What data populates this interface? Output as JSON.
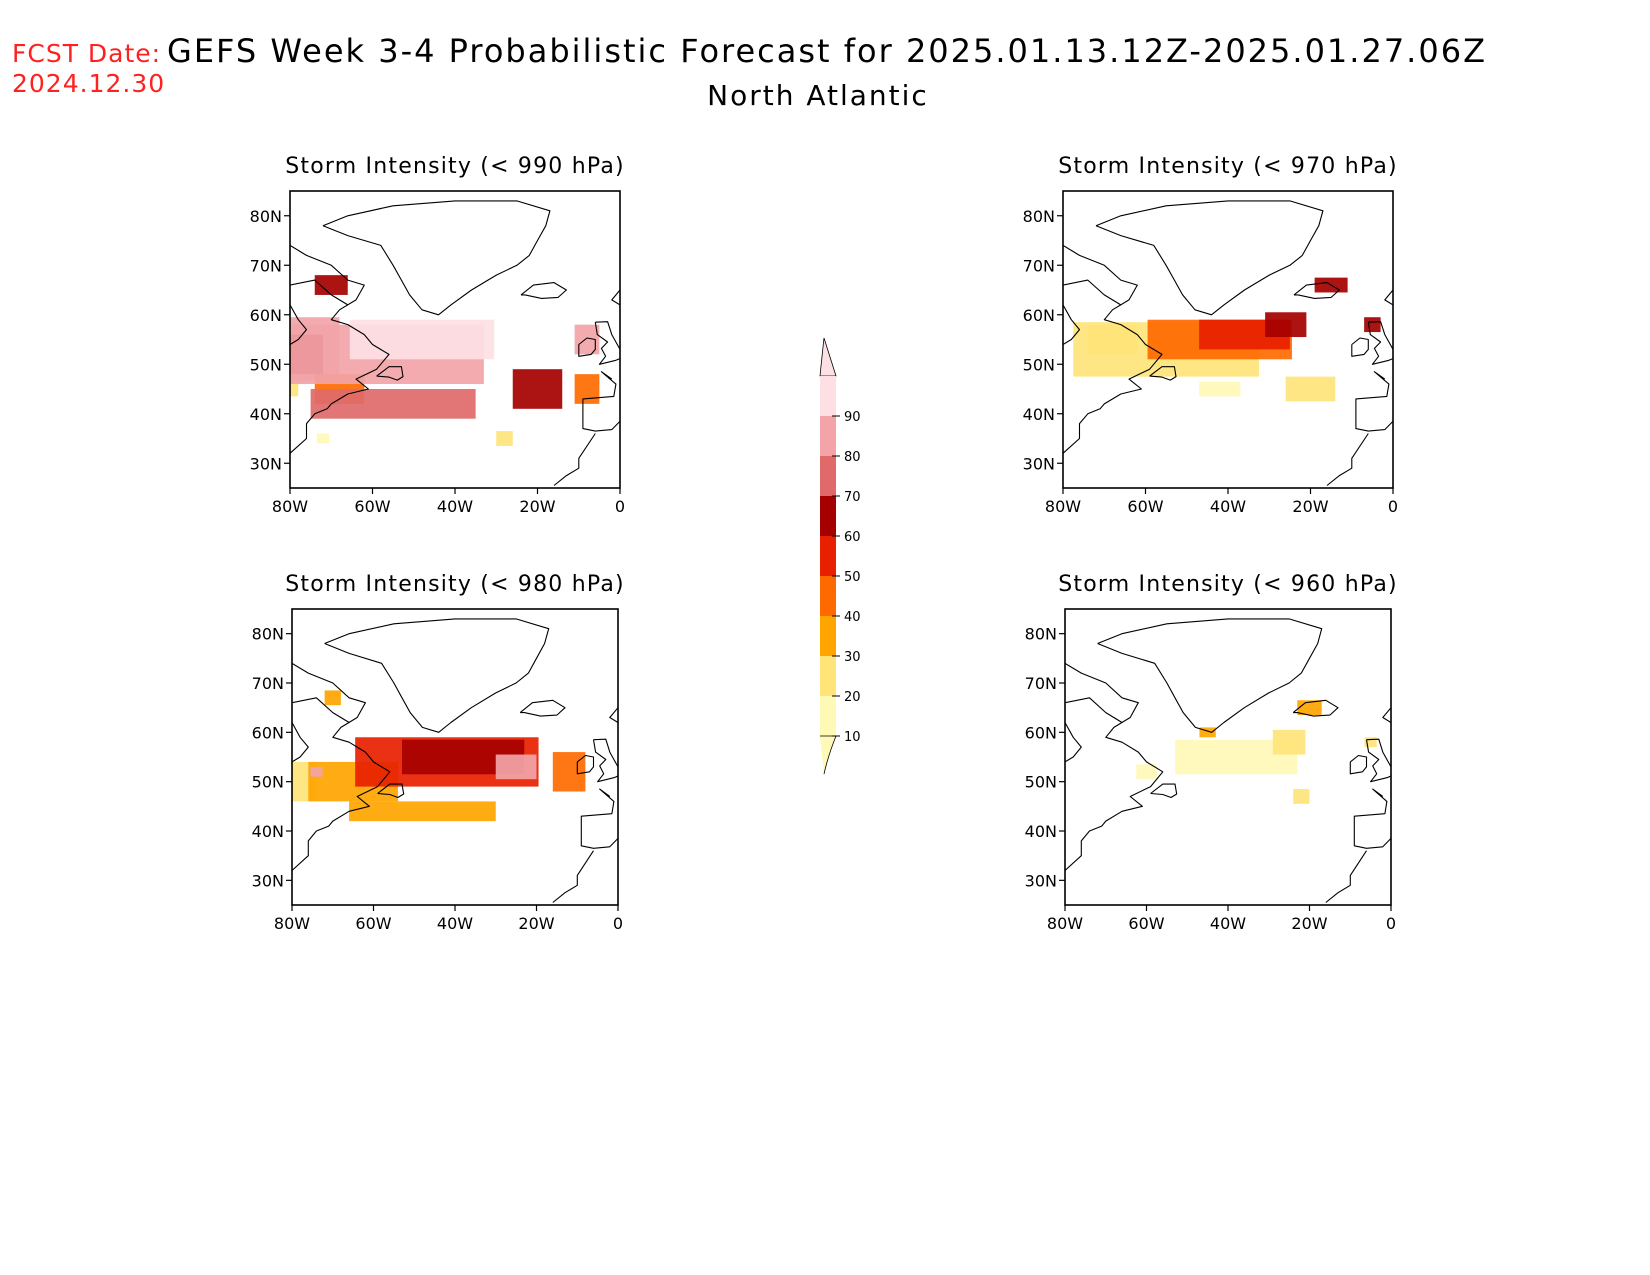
{
  "header": {
    "fcst_label": "FCST Date:",
    "fcst_date": "2024.12.30",
    "title": "GEFS Week 3-4 Probabilistic Forecast for 2025.01.13.12Z-2025.01.27.06Z",
    "subtitle": "North Atlantic"
  },
  "colorbar": {
    "levels": [
      "10",
      "20",
      "30",
      "40",
      "50",
      "60",
      "70",
      "80",
      "90"
    ],
    "colors": [
      "#fff9b8",
      "#ffe47a",
      "#ffa500",
      "#ff6a00",
      "#e82000",
      "#a50000",
      "#e06a6a",
      "#f2a4a8",
      "#fde0e4"
    ]
  },
  "axes": {
    "lat_labels": [
      "80N",
      "70N",
      "60N",
      "50N",
      "40N",
      "30N"
    ],
    "lon_labels": [
      "80W",
      "60W",
      "40W",
      "20W",
      "0"
    ]
  },
  "panels": [
    {
      "id": "p990",
      "title": "Storm Intensity (< 990 hPa)",
      "field": [
        {
          "lon": -80,
          "lat": 45,
          "w": 4,
          "h": 3,
          "p": 20
        },
        {
          "lon": -78,
          "lat": 53,
          "w": 20,
          "h": 13,
          "p": 85
        },
        {
          "lon": -78,
          "lat": 52,
          "w": 12,
          "h": 8,
          "p": 65
        },
        {
          "lon": -68,
          "lat": 45,
          "w": 12,
          "h": 6,
          "p": 45
        },
        {
          "lon": -58,
          "lat": 52,
          "w": 50,
          "h": 12,
          "p": 80
        },
        {
          "lon": -48,
          "lat": 55,
          "w": 35,
          "h": 8,
          "p": 90
        },
        {
          "lon": -55,
          "lat": 42,
          "w": 40,
          "h": 6,
          "p": 75
        },
        {
          "lon": -20,
          "lat": 45,
          "w": 12,
          "h": 8,
          "p": 65
        },
        {
          "lon": -8,
          "lat": 45,
          "w": 6,
          "h": 6,
          "p": 45
        },
        {
          "lon": -8,
          "lat": 55,
          "w": 6,
          "h": 6,
          "p": 85
        },
        {
          "lon": -70,
          "lat": 66,
          "w": 8,
          "h": 4,
          "p": 65
        },
        {
          "lon": -28,
          "lat": 35,
          "w": 4,
          "h": 3,
          "p": 25
        },
        {
          "lon": -72,
          "lat": 35,
          "w": 3,
          "h": 2,
          "p": 15
        }
      ]
    },
    {
      "id": "p970",
      "title": "Storm Intensity (< 970 hPa)",
      "field": [
        {
          "lon": -68,
          "lat": 55,
          "w": 12,
          "h": 6,
          "p": 20
        },
        {
          "lon": -55,
          "lat": 53,
          "w": 45,
          "h": 11,
          "p": 25
        },
        {
          "lon": -42,
          "lat": 55,
          "w": 35,
          "h": 8,
          "p": 40
        },
        {
          "lon": -36,
          "lat": 56,
          "w": 22,
          "h": 6,
          "p": 50
        },
        {
          "lon": -26,
          "lat": 58,
          "w": 10,
          "h": 5,
          "p": 60
        },
        {
          "lon": -15,
          "lat": 66,
          "w": 8,
          "h": 3,
          "p": 65
        },
        {
          "lon": -5,
          "lat": 58,
          "w": 4,
          "h": 3,
          "p": 60
        },
        {
          "lon": -20,
          "lat": 45,
          "w": 12,
          "h": 5,
          "p": 20
        },
        {
          "lon": -42,
          "lat": 45,
          "w": 10,
          "h": 3,
          "p": 15
        }
      ]
    },
    {
      "id": "p980",
      "title": "Storm Intensity (< 980 hPa)",
      "field": [
        {
          "lon": -78,
          "lat": 50,
          "w": 8,
          "h": 8,
          "p": 20
        },
        {
          "lon": -65,
          "lat": 50,
          "w": 22,
          "h": 8,
          "p": 35
        },
        {
          "lon": -42,
          "lat": 54,
          "w": 45,
          "h": 10,
          "p": 55
        },
        {
          "lon": -38,
          "lat": 55,
          "w": 30,
          "h": 7,
          "p": 65
        },
        {
          "lon": -25,
          "lat": 53,
          "w": 10,
          "h": 5,
          "p": 85
        },
        {
          "lon": -48,
          "lat": 44,
          "w": 36,
          "h": 4,
          "p": 30
        },
        {
          "lon": -12,
          "lat": 52,
          "w": 8,
          "h": 8,
          "p": 40
        },
        {
          "lon": -70,
          "lat": 67,
          "w": 4,
          "h": 3,
          "p": 35
        },
        {
          "lon": -74,
          "lat": 52,
          "w": 3,
          "h": 2,
          "p": 85
        }
      ]
    },
    {
      "id": "p960",
      "title": "Storm Intensity (< 960 hPa)",
      "field": [
        {
          "lon": -38,
          "lat": 55,
          "w": 30,
          "h": 7,
          "p": 15
        },
        {
          "lon": -25,
          "lat": 58,
          "w": 8,
          "h": 5,
          "p": 25
        },
        {
          "lon": -20,
          "lat": 65,
          "w": 6,
          "h": 3,
          "p": 35
        },
        {
          "lon": -45,
          "lat": 60,
          "w": 4,
          "h": 2,
          "p": 35
        },
        {
          "lon": -22,
          "lat": 47,
          "w": 4,
          "h": 3,
          "p": 20
        },
        {
          "lon": -60,
          "lat": 52,
          "w": 5,
          "h": 3,
          "p": 15
        },
        {
          "lon": -5,
          "lat": 58,
          "w": 3,
          "h": 2,
          "p": 25
        }
      ]
    }
  ]
}
